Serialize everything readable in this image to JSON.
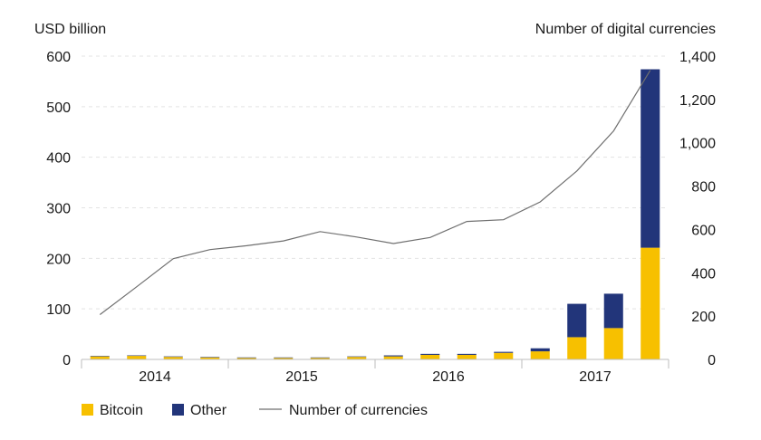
{
  "chart_data": {
    "type": "bar+line",
    "left_axis_title": "USD billion",
    "right_axis_title": "Number of digital currencies",
    "left_ylim": [
      0,
      600
    ],
    "left_ticks": [
      "0",
      "100",
      "200",
      "300",
      "400",
      "500",
      "600"
    ],
    "right_ylim": [
      0,
      1400
    ],
    "right_ticks": [
      "0",
      "200",
      "400",
      "600",
      "800",
      "1,000",
      "1,200",
      "1,400"
    ],
    "x_labels": [
      "2014",
      "2015",
      "2016",
      "2017"
    ],
    "quarters": [
      "2014Q1",
      "2014Q2",
      "2014Q3",
      "2014Q4",
      "2015Q1",
      "2015Q2",
      "2015Q3",
      "2015Q4",
      "2016Q1",
      "2016Q2",
      "2016Q3",
      "2016Q4",
      "2017Q1",
      "2017Q2",
      "2017Q3",
      "2017Q4"
    ],
    "series": [
      {
        "name": "Bitcoin",
        "type": "bar",
        "axis": "left",
        "color": "#f7c000",
        "values": [
          6,
          7,
          5,
          4,
          3,
          3,
          3,
          5,
          6,
          9,
          9,
          13,
          16,
          44,
          62,
          221
        ]
      },
      {
        "name": "Other",
        "type": "bar",
        "axis": "left",
        "color": "#22357a",
        "values": [
          1,
          1,
          1,
          1,
          1,
          1,
          1,
          1,
          2,
          2,
          2,
          2,
          6,
          66,
          68,
          353
        ]
      },
      {
        "name": "Number of currencies",
        "type": "line",
        "axis": "right",
        "color": "#6f6f6f",
        "values": [
          207,
          335,
          465,
          507,
          525,
          547,
          590,
          565,
          535,
          563,
          637,
          645,
          727,
          870,
          1055,
          1335
        ]
      }
    ],
    "legend_position": "bottom-left",
    "grid": "left-axis dashed"
  }
}
